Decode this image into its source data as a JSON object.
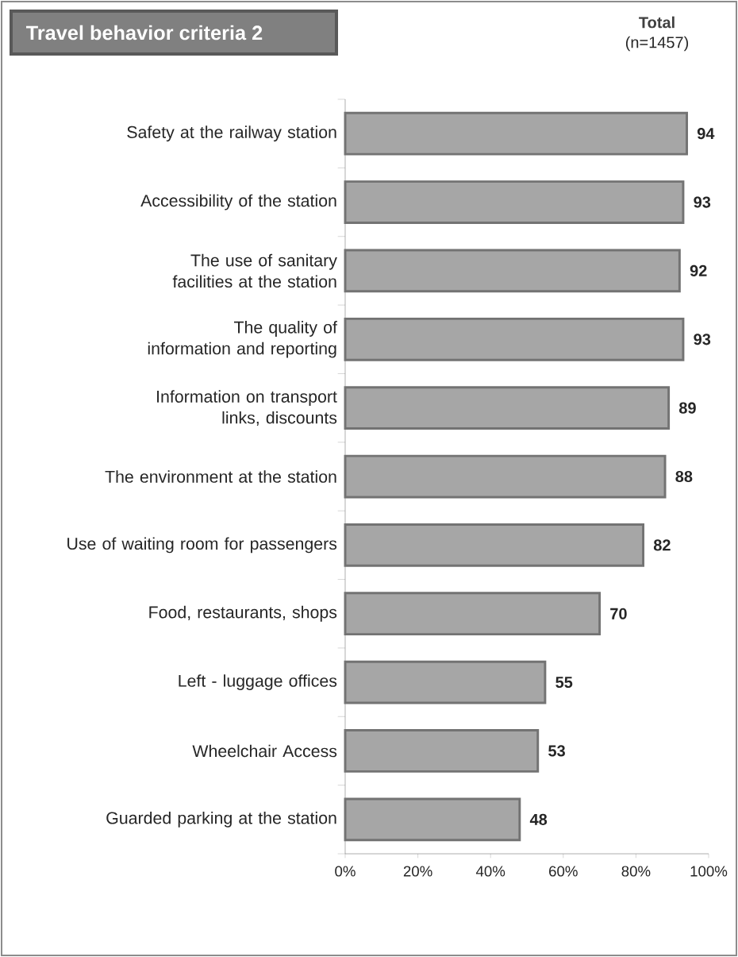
{
  "chart_data": {
    "type": "bar",
    "orientation": "horizontal",
    "title": "Travel behavior criteria 2",
    "subtitle": "Total",
    "annotations": [
      "(n=1457)"
    ],
    "categories": [
      "Safety at the railway station",
      "Accessibility of the station",
      "The use of sanitary facilities at the station",
      "The quality of information and reporting",
      "Information on transport links, discounts",
      "The environment at the station",
      "Use of waiting room for passengers",
      "Food, restaurants,  shops",
      "Left - luggage offices",
      "Wheelchair Access",
      "Guarded parking at the station"
    ],
    "values": [
      94,
      93,
      92,
      93,
      89,
      88,
      82,
      70,
      55,
      53,
      48
    ],
    "color": "#a6a6a6",
    "xlim": [
      0,
      100
    ],
    "xticks": [
      {
        "value": 0,
        "label": "0%"
      },
      {
        "value": 20,
        "label": "20%"
      },
      {
        "value": 40,
        "label": "40%"
      },
      {
        "value": 60,
        "label": "60%"
      },
      {
        "value": 80,
        "label": "80%"
      },
      {
        "value": 100,
        "label": "100%"
      }
    ],
    "data_labels": true
  }
}
